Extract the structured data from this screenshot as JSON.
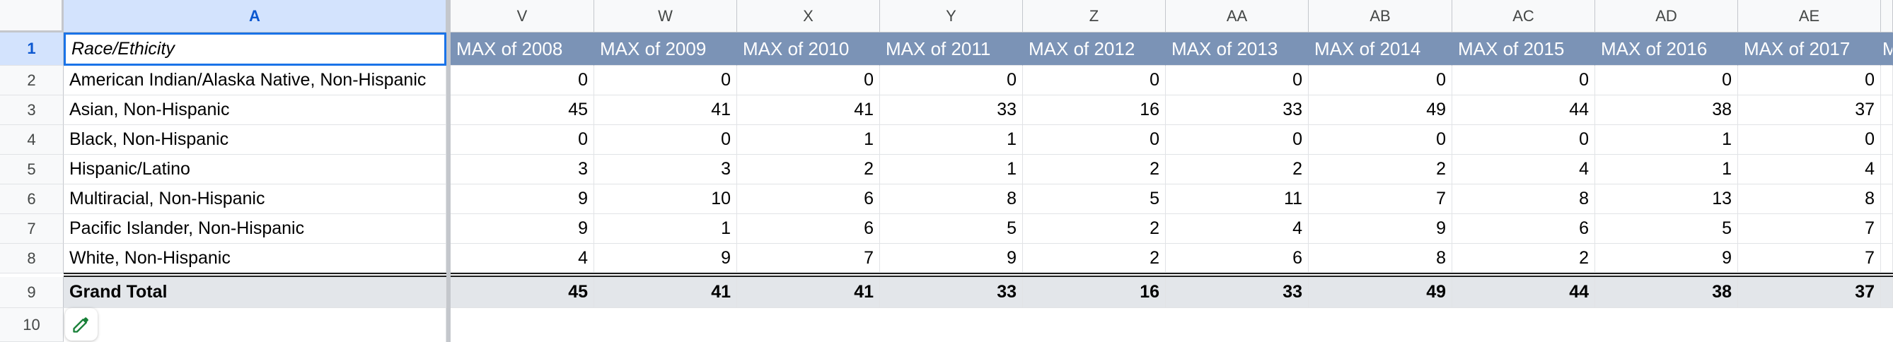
{
  "columns": {
    "A": "A",
    "V": "V",
    "W": "W",
    "X": "X",
    "Y": "Y",
    "Z": "Z",
    "AA": "AA",
    "AB": "AB",
    "AC": "AC",
    "AD": "AD",
    "AE": "AE"
  },
  "rows": [
    "1",
    "2",
    "3",
    "4",
    "5",
    "6",
    "7",
    "8",
    "9",
    "10"
  ],
  "header": {
    "a": "Race/Ethicity",
    "years": [
      "MAX of 2008",
      "MAX of 2009",
      "MAX of 2010",
      "MAX of 2011",
      "MAX of 2012",
      "MAX of 2013",
      "MAX of 2014",
      "MAX of 2015",
      "MAX of 2016",
      "MAX of 2017"
    ],
    "overflow": "M"
  },
  "data_rows": [
    {
      "label": "American Indian/Alaska Native, Non-Hispanic",
      "values": [
        "0",
        "0",
        "0",
        "0",
        "0",
        "0",
        "0",
        "0",
        "0",
        "0"
      ]
    },
    {
      "label": "Asian, Non-Hispanic",
      "values": [
        "45",
        "41",
        "41",
        "33",
        "16",
        "33",
        "49",
        "44",
        "38",
        "37"
      ]
    },
    {
      "label": "Black, Non-Hispanic",
      "values": [
        "0",
        "0",
        "1",
        "1",
        "0",
        "0",
        "0",
        "0",
        "1",
        "0"
      ]
    },
    {
      "label": "Hispanic/Latino",
      "values": [
        "3",
        "3",
        "2",
        "1",
        "2",
        "2",
        "2",
        "4",
        "1",
        "4"
      ]
    },
    {
      "label": "Multiracial, Non-Hispanic",
      "values": [
        "9",
        "10",
        "6",
        "8",
        "5",
        "11",
        "7",
        "8",
        "13",
        "8"
      ]
    },
    {
      "label": "Pacific Islander, Non-Hispanic",
      "values": [
        "9",
        "1",
        "6",
        "5",
        "2",
        "4",
        "9",
        "6",
        "5",
        "7"
      ]
    },
    {
      "label": "White, Non-Hispanic",
      "values": [
        "4",
        "9",
        "7",
        "9",
        "2",
        "6",
        "8",
        "2",
        "9",
        "7"
      ]
    }
  ],
  "grand_total": {
    "label": "Grand Total",
    "values": [
      "45",
      "41",
      "41",
      "33",
      "16",
      "33",
      "49",
      "44",
      "38",
      "37"
    ]
  },
  "icons": {
    "edit": "pencil-icon"
  },
  "colors": {
    "header_fill": "#7b93b6",
    "selection": "#1a73e8",
    "total_fill": "#e3e6ea",
    "edit_icon": "#188038"
  }
}
